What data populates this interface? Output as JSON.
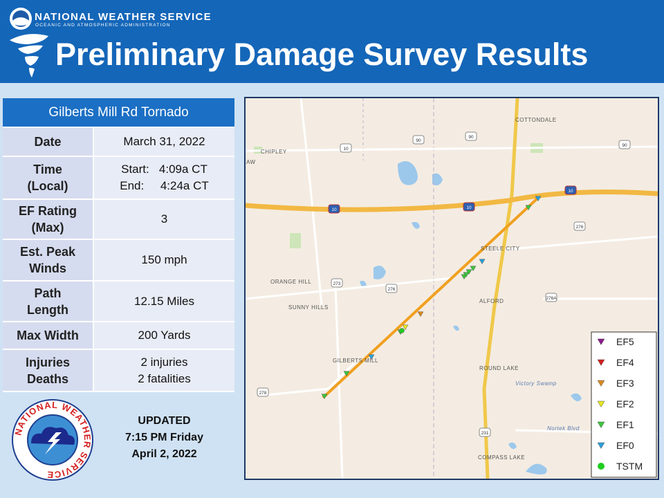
{
  "header": {
    "agency": "NATIONAL WEATHER SERVICE",
    "agency_sub": "OCEANIC AND ATMOSPHERIC ADMINISTRATION",
    "title": "Preliminary Damage Survey Results"
  },
  "table": {
    "title": "Gilberts Mill Rd Tornado",
    "rows": [
      {
        "label": [
          "Date"
        ],
        "value": [
          "March 31, 2022"
        ]
      },
      {
        "label": [
          "Time",
          "(Local)"
        ],
        "value": [
          "Start:   4:09a CT",
          "End:     4:24a CT"
        ]
      },
      {
        "label": [
          "EF Rating",
          "(Max)"
        ],
        "value": [
          "3"
        ]
      },
      {
        "label": [
          "Est. Peak",
          "Winds"
        ],
        "value": [
          "150 mph"
        ]
      },
      {
        "label": [
          "Path",
          "Length"
        ],
        "value": [
          "12.15 Miles"
        ]
      },
      {
        "label": [
          "Max Width"
        ],
        "value": [
          "200 Yards"
        ]
      },
      {
        "label": [
          "Injuries",
          "Deaths"
        ],
        "value": [
          "2 injuries",
          "2 fatalities"
        ]
      }
    ]
  },
  "logo_text": "NATIONAL WEATHER SERVICE",
  "update": [
    "UPDATED",
    "7:15 PM Friday",
    "April 2, 2022"
  ],
  "map": {
    "places": [
      "COTTONDALE",
      "CHIPLEY",
      "LAW",
      "STEELE CITY",
      "ORANGE HILL",
      "SUNNY HILLS",
      "ALFORD",
      "GILBERTS MILL",
      "ROUND LAKE",
      "Victory Swamp",
      "Nortek Blvd",
      "COMPASS LAKE"
    ],
    "shields": [
      "90",
      "90",
      "90",
      "10",
      "10",
      "10",
      "10",
      "276",
      "273",
      "276",
      "276A",
      "278",
      "231"
    ],
    "legend": [
      {
        "name": "EF5",
        "color": "#8b1a8b"
      },
      {
        "name": "EF4",
        "color": "#d42020"
      },
      {
        "name": "EF3",
        "color": "#d98a1c"
      },
      {
        "name": "EF2",
        "color": "#e6e620"
      },
      {
        "name": "EF1",
        "color": "#3cc43c"
      },
      {
        "name": "EF0",
        "color": "#2aa0d8"
      },
      {
        "name": "TSTM",
        "color": "#22cc22"
      }
    ]
  }
}
